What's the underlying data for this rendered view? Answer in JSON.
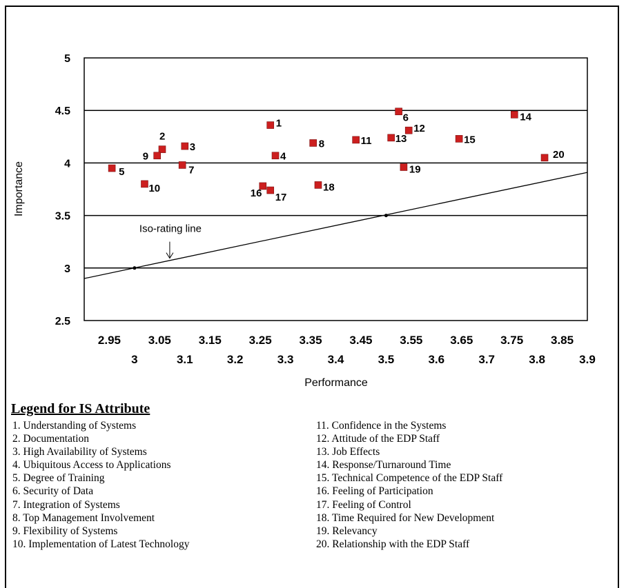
{
  "chart_data": {
    "type": "scatter",
    "xlabel": "Performance",
    "ylabel": "Importance",
    "xlim": [
      2.9,
      3.9
    ],
    "ylim": [
      2.5,
      5
    ],
    "y_ticks": [
      "5",
      "4.5",
      "4",
      "3.5",
      "3",
      "2.5"
    ],
    "y_tick_values": [
      5,
      4.5,
      4,
      3.5,
      3,
      2.5
    ],
    "x_ticks_upper": [
      "2.95",
      "3.05",
      "3.15",
      "3.25",
      "3.35",
      "3.45",
      "3.55",
      "3.65",
      "3.75",
      "3.85"
    ],
    "x_tick_values_upper": [
      2.95,
      3.05,
      3.15,
      3.25,
      3.35,
      3.45,
      3.55,
      3.65,
      3.75,
      3.85
    ],
    "x_ticks_lower": [
      "3",
      "3.1",
      "3.2",
      "3.3",
      "3.4",
      "3.5",
      "3.6",
      "3.7",
      "3.8",
      "3.9"
    ],
    "x_tick_values_lower": [
      3.0,
      3.1,
      3.2,
      3.3,
      3.4,
      3.5,
      3.6,
      3.7,
      3.8,
      3.9
    ],
    "grid": "horizontal",
    "marker_color": "#cc1f1f",
    "points": [
      {
        "label": "1",
        "x": 3.27,
        "y": 4.36
      },
      {
        "label": "2",
        "x": 3.055,
        "y": 4.13
      },
      {
        "label": "3",
        "x": 3.1,
        "y": 4.16
      },
      {
        "label": "4",
        "x": 3.28,
        "y": 4.07
      },
      {
        "label": "5",
        "x": 2.955,
        "y": 3.95
      },
      {
        "label": "6",
        "x": 3.525,
        "y": 4.49
      },
      {
        "label": "7",
        "x": 3.095,
        "y": 3.98
      },
      {
        "label": "8",
        "x": 3.355,
        "y": 4.19
      },
      {
        "label": "9",
        "x": 3.045,
        "y": 4.07
      },
      {
        "label": "10",
        "x": 3.02,
        "y": 3.8
      },
      {
        "label": "11",
        "x": 3.44,
        "y": 4.22
      },
      {
        "label": "12",
        "x": 3.545,
        "y": 4.31
      },
      {
        "label": "13",
        "x": 3.51,
        "y": 4.24
      },
      {
        "label": "14",
        "x": 3.755,
        "y": 4.46
      },
      {
        "label": "15",
        "x": 3.645,
        "y": 4.23
      },
      {
        "label": "16",
        "x": 3.255,
        "y": 3.78
      },
      {
        "label": "17",
        "x": 3.27,
        "y": 3.74
      },
      {
        "label": "18",
        "x": 3.365,
        "y": 3.79
      },
      {
        "label": "19",
        "x": 3.535,
        "y": 3.96
      },
      {
        "label": "20",
        "x": 3.815,
        "y": 4.05
      }
    ],
    "iso_line": {
      "x": [
        2.9,
        3.9
      ],
      "y": [
        2.9,
        3.91
      ]
    },
    "iso_points": [
      {
        "x": 3.0,
        "y": 3.0
      },
      {
        "x": 3.5,
        "y": 3.5
      }
    ],
    "annotation": {
      "text": "Iso-rating line",
      "target_x": 3.07,
      "target_y": 3.08
    }
  },
  "legend": {
    "title": "Legend for IS Attribute",
    "left": [
      "1. Understanding of Systems",
      "2. Documentation",
      "3. High Availability of Systems",
      "4. Ubiquitous Access to Applications",
      "5. Degree of Training",
      "6. Security of Data",
      "7. Integration of Systems",
      "8. Top Management Involvement",
      "9. Flexibility of Systems",
      "10. Implementation of Latest Technology"
    ],
    "right": [
      "11. Confidence in the Systems",
      "12. Attitude of the EDP Staff",
      "13. Job Effects",
      "14. Response/Turnaround Time",
      "15. Technical Competence of the EDP Staff",
      "16. Feeling of Participation",
      "17. Feeling of Control",
      "18. Time Required for New Development",
      "19. Relevancy",
      "20. Relationship with the EDP Staff"
    ]
  }
}
